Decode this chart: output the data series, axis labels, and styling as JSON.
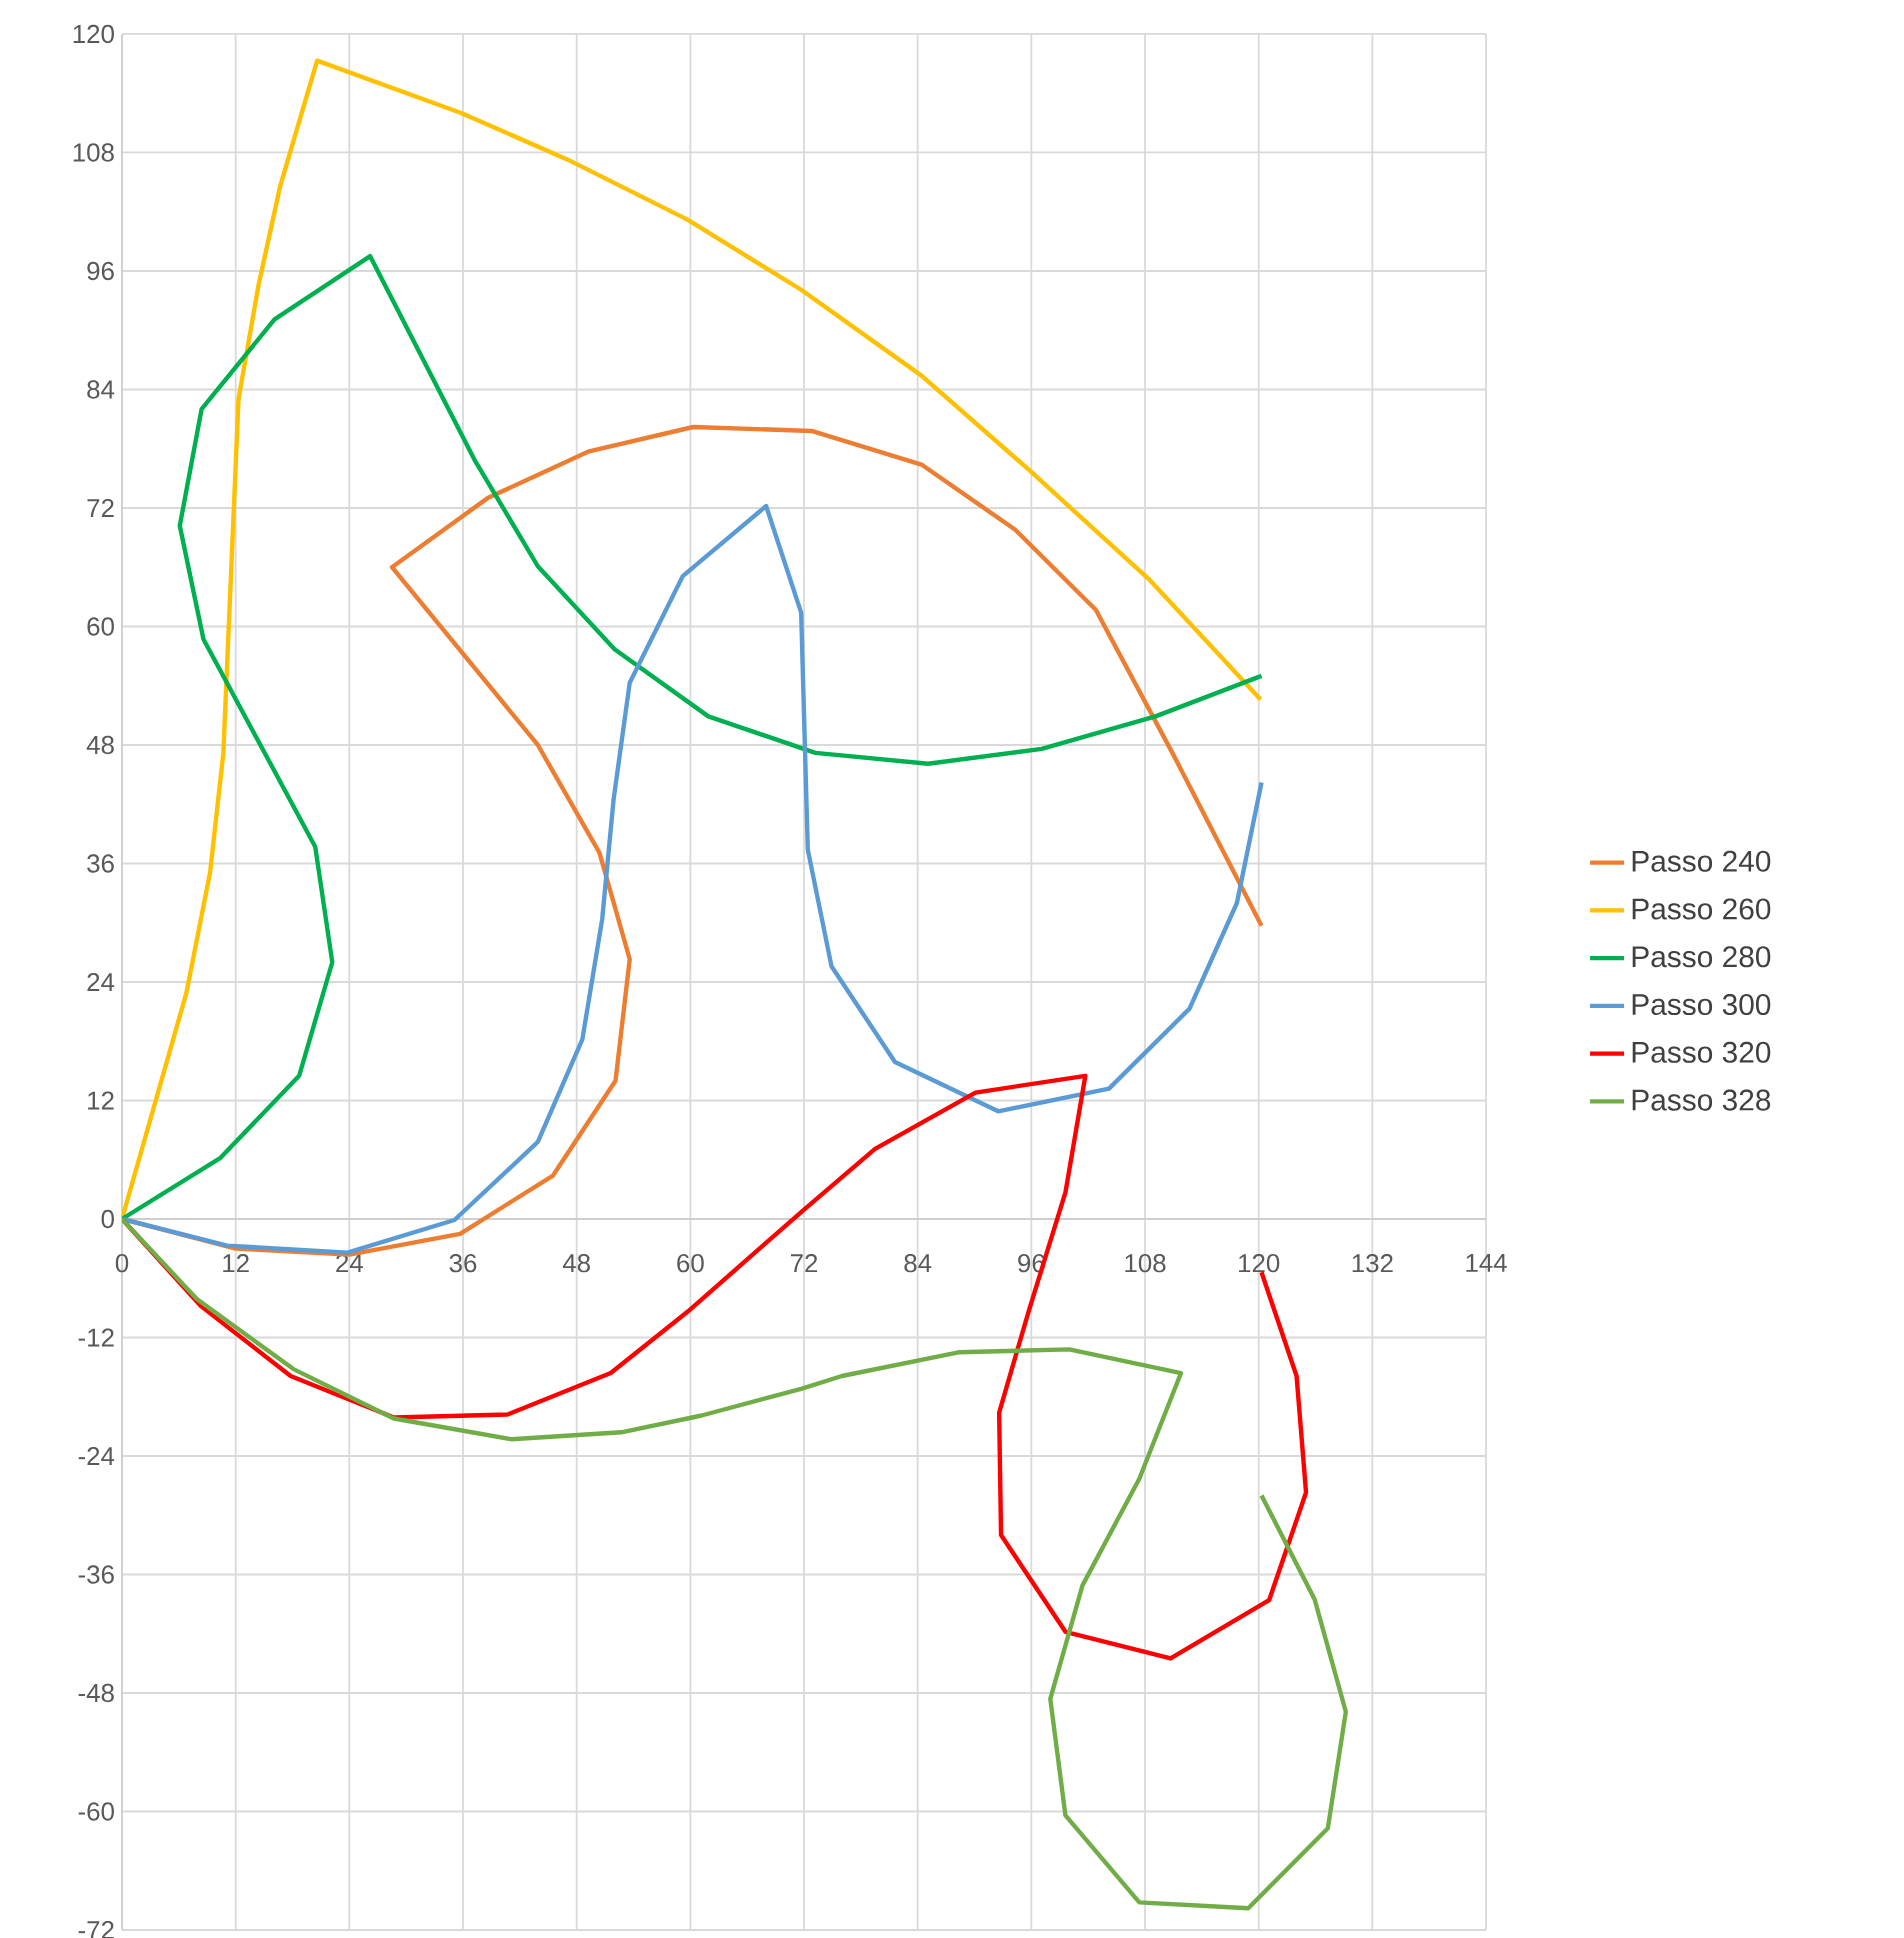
{
  "chart_data": {
    "type": "line",
    "xlim": [
      0,
      144
    ],
    "ylim": [
      -72,
      120
    ],
    "xticks": [
      0,
      12,
      24,
      36,
      48,
      60,
      72,
      84,
      96,
      108,
      120,
      132,
      144
    ],
    "yticks": [
      -72,
      -60,
      -48,
      -36,
      -24,
      -12,
      0,
      12,
      24,
      36,
      48,
      60,
      72,
      84,
      96,
      108,
      120
    ],
    "grid": true,
    "legend": "right",
    "marker": "none",
    "line_style": "solid",
    "series": [
      {
        "name": "Passo 240",
        "color": "#ed7d31",
        "x": [
          0,
          12,
          24,
          35.7,
          45.5,
          52.1,
          53.6,
          50.4,
          43.9,
          28.5,
          38.6,
          49.2,
          60.3,
          72.8,
          84.4,
          94.3,
          102.8,
          111,
          120.3
        ],
        "values": [
          0,
          -3,
          -3.6,
          -1.5,
          4.4,
          14,
          26.3,
          37.1,
          48,
          66,
          73,
          77.7,
          80.2,
          79.8,
          76.4,
          69.8,
          61.7,
          47,
          29.7
        ]
      },
      {
        "name": "Passo 260",
        "color": "#ffc000",
        "x": [
          0,
          6.8,
          9.3,
          10.7,
          12.3,
          14.4,
          16.7,
          20.6,
          35.8,
          47,
          59.7,
          71.7,
          84.4,
          95.7,
          108.4,
          120.2
        ],
        "values": [
          0,
          22.9,
          35.1,
          47.2,
          83,
          94.5,
          104.6,
          117.3,
          112,
          107.3,
          101.2,
          94.1,
          85.4,
          75.9,
          64.8,
          52.6
        ]
      },
      {
        "name": "Passo 280",
        "color": "#00b050",
        "x": [
          0,
          10.4,
          18.7,
          22.2,
          20.4,
          8.6,
          6.1,
          8.4,
          16.1,
          26.2,
          37.2,
          43.9,
          52,
          61.9,
          73.2,
          85.1,
          97.1,
          109.1,
          120.3
        ],
        "values": [
          0,
          6.2,
          14.5,
          26,
          37.7,
          58.7,
          70.2,
          82,
          91.1,
          97.5,
          76.9,
          66.1,
          57.7,
          50.9,
          47.2,
          46.1,
          47.6,
          50.9,
          55
        ]
      },
      {
        "name": "Passo 300",
        "color": "#5b9bd5",
        "x": [
          0,
          11.1,
          23.8,
          35.1,
          43.9,
          48.6,
          50.7,
          51.9,
          53.6,
          59.2,
          68,
          71.7,
          72.4,
          74.9,
          81.6,
          92.5,
          104.2,
          112.7,
          117.7,
          120.3
        ],
        "values": [
          0,
          -2.7,
          -3.4,
          -0.1,
          7.8,
          18.2,
          30.4,
          42.5,
          54.3,
          65.1,
          72.2,
          61.4,
          37.4,
          25.6,
          15.9,
          10.9,
          13.2,
          21.3,
          32,
          44.2
        ]
      },
      {
        "name": "Passo 320",
        "color": "#ff0000",
        "x": [
          0,
          8.3,
          17.8,
          28.7,
          40.7,
          51.6,
          59.7,
          71.7,
          79.5,
          90.1,
          101.7,
          99.6,
          95.7,
          92.6,
          92.8,
          99.6,
          110.7,
          121.1,
          125,
          124,
          120.3
        ],
        "values": [
          0,
          -8.8,
          -15.9,
          -20.1,
          -19.8,
          -15.6,
          -9.4,
          0.7,
          7.1,
          12.8,
          14.5,
          2.7,
          -9.4,
          -19.6,
          -32,
          -41.8,
          -44.5,
          -38.6,
          -27.7,
          -15.9,
          -5.4
        ]
      },
      {
        "name": "Passo 328",
        "color": "#70ad47",
        "x": [
          0,
          7.9,
          18.1,
          28.7,
          41.1,
          52.7,
          61.2,
          71.7,
          76,
          88.3,
          100,
          111.8,
          107.4,
          101.4,
          98,
          99.6,
          107.4,
          118.9,
          127.3,
          129.2,
          125.9,
          120.3
        ],
        "values": [
          0,
          -8.1,
          -15.2,
          -20.2,
          -22.3,
          -21.6,
          -19.9,
          -17.2,
          -15.9,
          -13.5,
          -13.2,
          -15.6,
          -26.3,
          -37.1,
          -48.6,
          -60.4,
          -69.2,
          -69.8,
          -61.7,
          -49.9,
          -38.5,
          -28
        ]
      }
    ]
  }
}
